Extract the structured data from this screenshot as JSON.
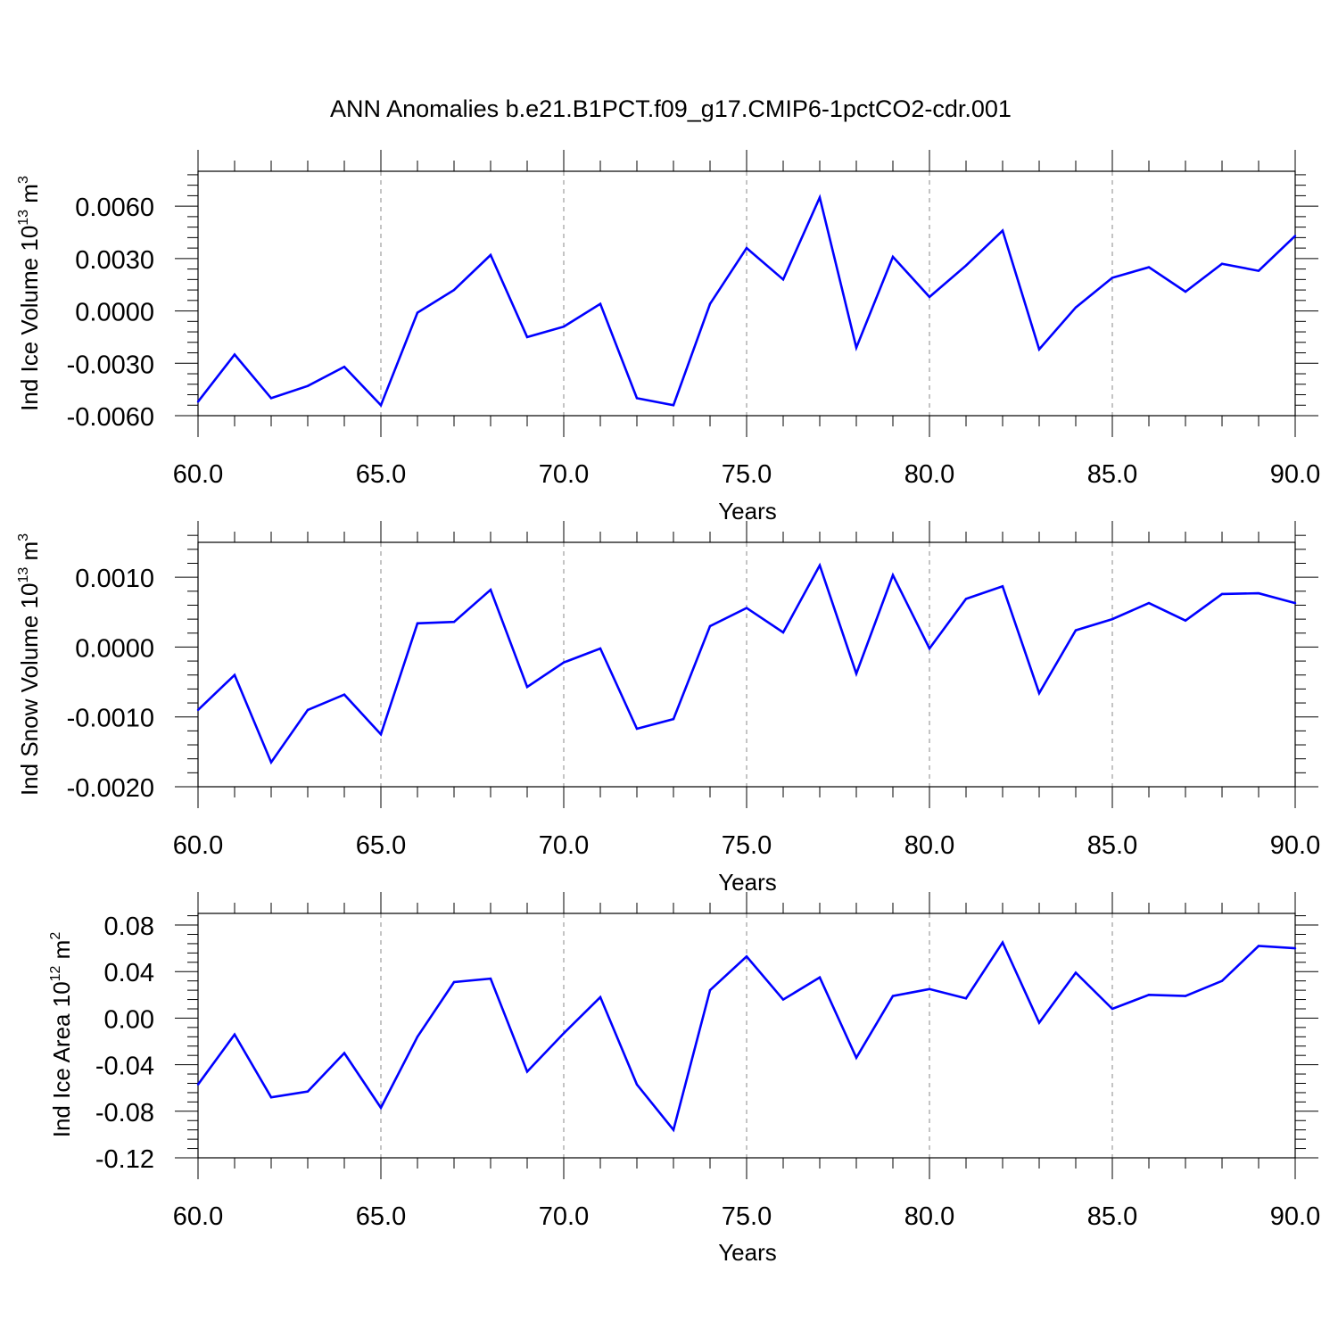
{
  "figure": {
    "title": "ANN Anomalies b.e21.B1PCT.f09_g17.CMIP6-1pctCO2-cdr.001",
    "line_color": "#0000ff",
    "grid_color": "#888888"
  },
  "chart_data": [
    {
      "type": "line",
      "xlabel": "Years",
      "ylabel_main": "Ind Ice Volume 10",
      "ylabel_exp": "13",
      "ylabel_unit": " m",
      "ylabel_unit_exp": "3",
      "xlim": [
        60,
        90
      ],
      "ylim": [
        -0.006,
        0.008
      ],
      "x_ticks": [
        60,
        65,
        70,
        75,
        80,
        85,
        90
      ],
      "x_tick_labels": [
        "60.0",
        "65.0",
        "70.0",
        "75.0",
        "80.0",
        "85.0",
        "90.0"
      ],
      "y_ticks": [
        -0.006,
        -0.003,
        0.0,
        0.003,
        0.006
      ],
      "y_tick_labels": [
        "-0.0060",
        "-0.0030",
        "0.0000",
        "0.0030",
        "0.0060"
      ],
      "x": [
        60,
        61,
        62,
        63,
        64,
        65,
        66,
        67,
        68,
        69,
        70,
        71,
        72,
        73,
        74,
        75,
        76,
        77,
        78,
        79,
        80,
        81,
        82,
        83,
        84,
        85,
        86,
        87,
        88,
        89,
        90
      ],
      "values": [
        -0.0052,
        -0.0025,
        -0.005,
        -0.0043,
        -0.0032,
        -0.0054,
        -0.0001,
        0.0012,
        0.0032,
        -0.0015,
        -0.0009,
        0.0004,
        -0.005,
        -0.0054,
        0.0004,
        0.0036,
        0.0018,
        0.0065,
        -0.0021,
        0.0031,
        0.0008,
        0.0026,
        0.0046,
        -0.0022,
        0.0002,
        0.0019,
        0.0025,
        0.0011,
        0.0027,
        0.0023,
        0.0043
      ]
    },
    {
      "type": "line",
      "xlabel": "Years",
      "ylabel_main": "Ind Snow Volume 10",
      "ylabel_exp": "13",
      "ylabel_unit": " m",
      "ylabel_unit_exp": "3",
      "xlim": [
        60,
        90
      ],
      "ylim": [
        -0.002,
        0.0015
      ],
      "x_ticks": [
        60,
        65,
        70,
        75,
        80,
        85,
        90
      ],
      "x_tick_labels": [
        "60.0",
        "65.0",
        "70.0",
        "75.0",
        "80.0",
        "85.0",
        "90.0"
      ],
      "y_ticks": [
        -0.002,
        -0.001,
        0.0,
        0.001
      ],
      "y_tick_labels": [
        "-0.0020",
        "-0.0010",
        "0.0000",
        "0.0010"
      ],
      "x": [
        60,
        61,
        62,
        63,
        64,
        65,
        66,
        67,
        68,
        69,
        70,
        71,
        72,
        73,
        74,
        75,
        76,
        77,
        78,
        79,
        80,
        81,
        82,
        83,
        84,
        85,
        86,
        87,
        88,
        89,
        90
      ],
      "values": [
        -0.0009,
        -0.0004,
        -0.00165,
        -0.0009,
        -0.00068,
        -0.00125,
        0.00034,
        0.00036,
        0.00082,
        -0.00057,
        -0.00022,
        -2e-05,
        -0.00117,
        -0.00103,
        0.0003,
        0.00056,
        0.00021,
        0.00117,
        -0.00038,
        0.00103,
        -2e-05,
        0.00069,
        0.00087,
        -0.00066,
        0.00024,
        0.0004,
        0.00063,
        0.00038,
        0.00076,
        0.00077,
        0.00063
      ]
    },
    {
      "type": "line",
      "xlabel": "Years",
      "ylabel_main": "Ind Ice Area 10",
      "ylabel_exp": "12",
      "ylabel_unit": " m",
      "ylabel_unit_exp": "2",
      "xlim": [
        60,
        90
      ],
      "ylim": [
        -0.12,
        0.09
      ],
      "x_ticks": [
        60,
        65,
        70,
        75,
        80,
        85,
        90
      ],
      "x_tick_labels": [
        "60.0",
        "65.0",
        "70.0",
        "75.0",
        "80.0",
        "85.0",
        "90.0"
      ],
      "y_ticks": [
        -0.12,
        -0.08,
        -0.04,
        0.0,
        0.04,
        0.08
      ],
      "y_tick_labels": [
        "-0.12",
        "-0.08",
        "-0.04",
        "0.00",
        "0.04",
        "0.08"
      ],
      "x": [
        60,
        61,
        62,
        63,
        64,
        65,
        66,
        67,
        68,
        69,
        70,
        71,
        72,
        73,
        74,
        75,
        76,
        77,
        78,
        79,
        80,
        81,
        82,
        83,
        84,
        85,
        86,
        87,
        88,
        89,
        90
      ],
      "values": [
        -0.057,
        -0.014,
        -0.068,
        -0.063,
        -0.03,
        -0.077,
        -0.016,
        0.031,
        0.034,
        -0.046,
        -0.013,
        0.018,
        -0.057,
        -0.096,
        0.024,
        0.053,
        0.016,
        0.035,
        -0.034,
        0.019,
        0.025,
        0.017,
        0.065,
        -0.004,
        0.039,
        0.008,
        0.02,
        0.019,
        0.032,
        0.062,
        0.06
      ]
    }
  ]
}
